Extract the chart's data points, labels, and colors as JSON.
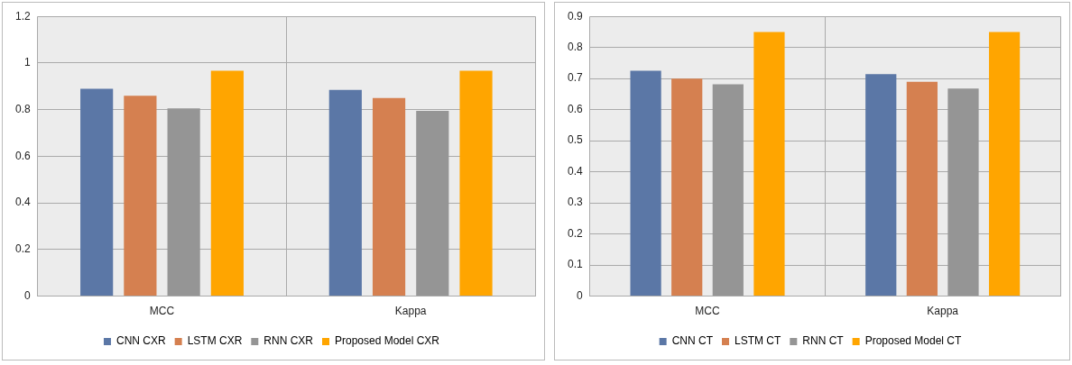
{
  "chart_data": [
    {
      "type": "bar",
      "categories": [
        "MCC",
        "Kappa"
      ],
      "series": [
        {
          "name": "CNN CXR",
          "color": "#5b77a6",
          "values": [
            0.89,
            0.885
          ]
        },
        {
          "name": "LSTM CXR",
          "color": "#d58050",
          "values": [
            0.86,
            0.85
          ]
        },
        {
          "name": "RNN CXR",
          "color": "#959595",
          "values": [
            0.805,
            0.795
          ]
        },
        {
          "name": "Proposed Model CXR",
          "color": "#ffa500",
          "values": [
            0.967,
            0.967
          ]
        }
      ],
      "ylim": [
        0,
        1.2
      ],
      "yticks": [
        0,
        0.2,
        0.4,
        0.6,
        0.8,
        1,
        1.2
      ],
      "grid": true,
      "legend": "bottom"
    },
    {
      "type": "bar",
      "categories": [
        "MCC",
        "Kappa"
      ],
      "series": [
        {
          "name": "CNN CT",
          "color": "#5b77a6",
          "values": [
            0.725,
            0.714
          ]
        },
        {
          "name": "LSTM CT",
          "color": "#d58050",
          "values": [
            0.7,
            0.69
          ]
        },
        {
          "name": "RNN CT",
          "color": "#959595",
          "values": [
            0.682,
            0.668
          ]
        },
        {
          "name": "Proposed Model CT",
          "color": "#ffa500",
          "values": [
            0.85,
            0.85
          ]
        }
      ],
      "ylim": [
        0,
        0.9
      ],
      "yticks": [
        0,
        0.1,
        0.2,
        0.3,
        0.4,
        0.5,
        0.6,
        0.7,
        0.8,
        0.9
      ],
      "grid": true,
      "legend": "bottom"
    }
  ]
}
